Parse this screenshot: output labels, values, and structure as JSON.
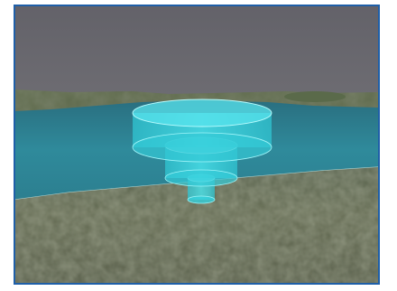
{
  "scene": {
    "sky_color": "#65646b",
    "water_color": "#2f8a9b",
    "far_land_color": "#5f6b4a",
    "near_terrain_color": "#5b6248",
    "airspace_color": "#39d9e6",
    "frame_border_color": "#1f5fa8"
  },
  "objects": {
    "tiers": [
      {
        "name": "upper-tier"
      },
      {
        "name": "middle-tier"
      },
      {
        "name": "lower-tier"
      }
    ]
  }
}
